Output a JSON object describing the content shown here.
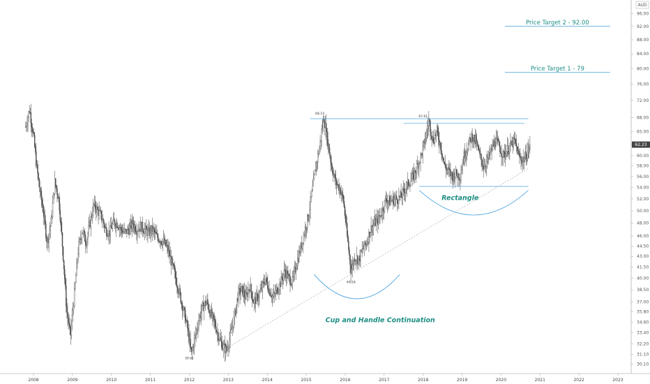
{
  "colors": {
    "candle": "#4d4d4d",
    "annotation": "#1f8f85",
    "pattern_line": "#4aa3e0",
    "target_line": "#3a9ad9",
    "trendline": "#b5b5b5",
    "grid": "#e0e0e0",
    "last_price_bg": "#444444"
  },
  "chart_data": {
    "type": "line",
    "currency": "AUD",
    "x": {
      "ticks": [
        "2008",
        "2009",
        "2010",
        "2011",
        "2012",
        "2013",
        "2014",
        "2015",
        "2016",
        "2017",
        "2018",
        "2019",
        "2020",
        "2021",
        "2022",
        "2023"
      ],
      "range": [
        2008.0,
        2023.0
      ]
    },
    "y": {
      "ticks": [
        "30.10",
        "31.10",
        "32.20",
        "33.40",
        "34.60",
        "35.80",
        "37.00",
        "38.50",
        "40.00",
        "41.50",
        "43.00",
        "44.50",
        "46.00",
        "48.00",
        "50.00",
        "52.00",
        "54.00",
        "56.00",
        "58.00",
        "60.00",
        "62.23",
        "65.00",
        "68.00",
        "72.00",
        "76.00",
        "80.00",
        "84.00",
        "88.00",
        "92.00",
        "96.00"
      ],
      "ylim": [
        29.6,
        99.0
      ],
      "scale": "log"
    },
    "last_price": "62.23",
    "series": [
      {
        "x": [
          2007.8,
          2007.9,
          2008.0,
          2008.08,
          2008.15,
          2008.25,
          2008.35,
          2008.45,
          2008.55,
          2008.65,
          2008.75,
          2008.85,
          2008.95,
          2009.05,
          2009.15,
          2009.25,
          2009.35,
          2009.45,
          2009.55,
          2009.65,
          2009.75,
          2009.85,
          2009.95,
          2010.05,
          2010.15,
          2010.25,
          2010.35,
          2010.45,
          2010.55,
          2010.65,
          2010.75,
          2010.85,
          2010.95,
          2011.05,
          2011.15,
          2011.25,
          2011.35,
          2011.45,
          2011.55,
          2011.65,
          2011.75,
          2011.85,
          2011.95,
          2012.05,
          2012.15,
          2012.25,
          2012.35,
          2012.45,
          2012.55,
          2012.65,
          2012.75,
          2012.85,
          2012.95,
          2013.05,
          2013.15,
          2013.25,
          2013.35,
          2013.45,
          2013.55,
          2013.65,
          2013.75,
          2013.85,
          2013.95,
          2014.05,
          2014.15,
          2014.25,
          2014.35,
          2014.45,
          2014.55,
          2014.65,
          2014.75,
          2014.85,
          2014.95,
          2015.05,
          2015.15,
          2015.25,
          2015.35,
          2015.45,
          2015.55,
          2015.65,
          2015.75,
          2015.85,
          2015.95,
          2016.05,
          2016.15,
          2016.25,
          2016.35,
          2016.45,
          2016.55,
          2016.65,
          2016.75,
          2016.85,
          2016.95,
          2017.05,
          2017.15,
          2017.25,
          2017.35,
          2017.45,
          2017.55,
          2017.65,
          2017.75,
          2017.85,
          2017.95,
          2018.05,
          2018.15,
          2018.25,
          2018.35,
          2018.45,
          2018.55,
          2018.65,
          2018.75,
          2018.85,
          2018.95,
          2019.05,
          2019.15,
          2019.25,
          2019.35,
          2019.45,
          2019.55,
          2019.65,
          2019.75,
          2019.85,
          2019.95,
          2020.05,
          2020.15,
          2020.25,
          2020.35,
          2020.45,
          2020.55,
          2020.65,
          2020.75
        ],
        "values": [
          66,
          70,
          64,
          58,
          54,
          50,
          45,
          48,
          55,
          52,
          44,
          36,
          33,
          38,
          44,
          47,
          45,
          48,
          51,
          50,
          49,
          47,
          46.5,
          48,
          48,
          47,
          46.5,
          47,
          48,
          47,
          47.5,
          47,
          46.5,
          47,
          46,
          45.5,
          45,
          44,
          42,
          40,
          38,
          36,
          34,
          31.1,
          33,
          35,
          36.5,
          37,
          35.5,
          34.5,
          33,
          32,
          31.5,
          33,
          35,
          38,
          38.5,
          37.5,
          39,
          37,
          37.5,
          38.5,
          40,
          38.5,
          37.5,
          38.5,
          39.5,
          41,
          40,
          39.5,
          42,
          44,
          46.5,
          49,
          53,
          58,
          62,
          68.1,
          63,
          58,
          55,
          54,
          52,
          46,
          41,
          43,
          42.5,
          44,
          45,
          47,
          48,
          48.5,
          50,
          52,
          51.5,
          52,
          52,
          52.5,
          54,
          55,
          56,
          58,
          60,
          63,
          67.5,
          63,
          65,
          62,
          58,
          57,
          56,
          56.5,
          56,
          60,
          62,
          64,
          63,
          60,
          58,
          59,
          61,
          63,
          62,
          60,
          61,
          62,
          63,
          60,
          59,
          60,
          62.23
        ]
      }
    ],
    "point_labels": [
      {
        "x": 2012.0,
        "y": 31.1,
        "text": "30.62"
      },
      {
        "x": 2015.35,
        "y": 68.1,
        "text": "68.14"
      },
      {
        "x": 2016.15,
        "y": 40.0,
        "text": "40.18"
      },
      {
        "x": 2018.0,
        "y": 67.5,
        "text": "67.61"
      }
    ],
    "annotations": [
      {
        "text": "Price Target 2 - 92.00",
        "y": 92.0,
        "x_start": 2020.1,
        "x_end": 2022.8
      },
      {
        "text": "Price Target 1 - 79",
        "y": 79.0,
        "x_start": 2020.1,
        "x_end": 2022.8
      }
    ],
    "patterns": [
      {
        "text": "Cup and Handle Continuation"
      },
      {
        "text": "Rectangle"
      }
    ],
    "legend": "none",
    "grid": false
  }
}
